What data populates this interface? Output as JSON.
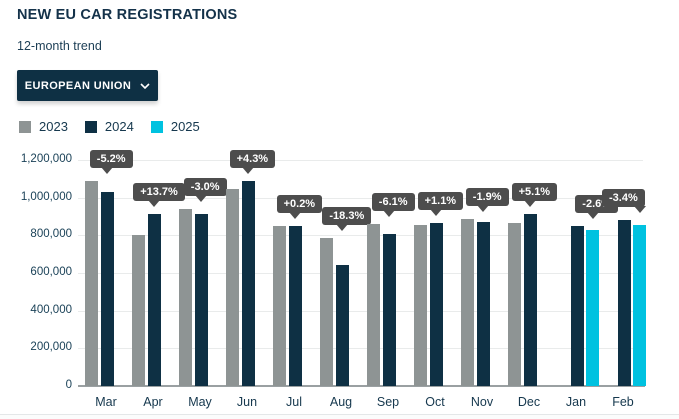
{
  "header": {
    "title": "NEW EU CAR REGISTRATIONS",
    "subtitle": "12-month trend"
  },
  "filter": {
    "label": "EUROPEAN UNION"
  },
  "legend": {
    "items": [
      {
        "label": "2023",
        "color": "#8e9494"
      },
      {
        "label": "2024",
        "color": "#0e3044"
      },
      {
        "label": "2025",
        "color": "#00c2e0"
      }
    ]
  },
  "colors": {
    "bar_2023": "#8e9494",
    "bar_2024": "#0e3044",
    "bar_2025": "#00c2e0",
    "tooltip_bg": "#4d4d4d",
    "axis_text": "#16384e",
    "button_bg": "#0e3044"
  },
  "chart_data": {
    "type": "bar",
    "title": "NEW EU CAR REGISTRATIONS",
    "subtitle": "12-month trend",
    "xlabel": "",
    "ylabel": "",
    "ylim": [
      0,
      1200000
    ],
    "grid": true,
    "legend_position": "top-left",
    "y_tick_labels": [
      "0",
      "200,000",
      "400,000",
      "600,000",
      "800,000",
      "1,000,000",
      "1,200,000"
    ],
    "y_tick_values": [
      0,
      200000,
      400000,
      600000,
      800000,
      1000000,
      1200000
    ],
    "categories": [
      "Mar",
      "Apr",
      "May",
      "Jun",
      "Jul",
      "Aug",
      "Sep",
      "Oct",
      "Nov",
      "Dec",
      "Jan",
      "Feb"
    ],
    "series": [
      {
        "name": "2023",
        "color": "#8e9494",
        "values": [
          1088000,
          803000,
          939000,
          1045000,
          850000,
          787000,
          861000,
          857000,
          887000,
          866000,
          null,
          null
        ]
      },
      {
        "name": "2024",
        "color": "#0e3044",
        "values": [
          1032000,
          914000,
          912000,
          1090000,
          852000,
          644000,
          809000,
          866000,
          870000,
          911000,
          852000,
          884000
        ]
      },
      {
        "name": "2025",
        "color": "#00c2e0",
        "values": [
          null,
          null,
          null,
          null,
          null,
          null,
          null,
          null,
          null,
          null,
          830000,
          854000
        ]
      }
    ],
    "change_vs_prev_year": [
      "-5.2%",
      "+13.7%",
      "-3.0%",
      "+4.3%",
      "+0.2%",
      "-18.3%",
      "-6.1%",
      "+1.1%",
      "-1.9%",
      "+5.1%",
      "-2.6%",
      "-3.4%"
    ]
  }
}
